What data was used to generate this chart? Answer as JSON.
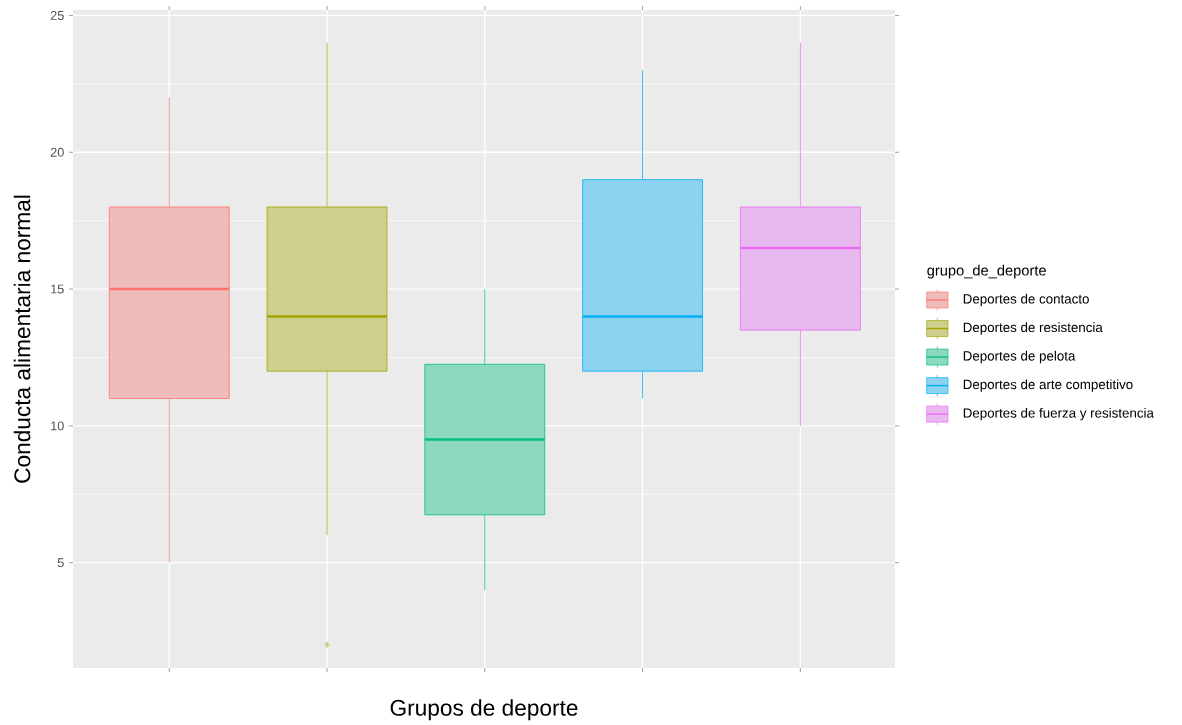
{
  "chart_data": {
    "type": "box",
    "xlabel": "Grupos de deporte",
    "ylabel": "Conducta alimentaria normal",
    "legend_title": "grupo_de_deporte",
    "legend": "right",
    "grid": true,
    "tick_labels": "y",
    "categories": [
      null,
      null,
      null,
      null,
      null
    ],
    "ylim": [
      1.15,
      25.2
    ],
    "yticks": [
      5,
      10,
      15,
      20,
      25
    ],
    "series": [
      {
        "name": "Deportes de contacto",
        "color": "#F8766D",
        "boxes": [
          {
            "low": 5,
            "q1": 11,
            "median": 15,
            "q3": 18,
            "high": 22
          },
          null,
          null,
          null,
          null
        ]
      },
      {
        "name": "Deportes de resistencia",
        "color": "#A3A500",
        "boxes": [
          null,
          {
            "low": 6,
            "q1": 12,
            "median": 14,
            "q3": 18,
            "high": 24,
            "outliers": [
              2
            ]
          },
          null,
          null,
          null
        ]
      },
      {
        "name": "Deportes de pelota",
        "color": "#00BF7D",
        "boxes": [
          null,
          null,
          {
            "low": 4,
            "q1": 6.75,
            "median": 9.5,
            "q3": 12.25,
            "high": 15
          },
          null,
          null
        ]
      },
      {
        "name": "Deportes de arte competitivo",
        "color": "#00B0F6",
        "boxes": [
          null,
          null,
          null,
          {
            "low": 11,
            "q1": 12,
            "median": 14,
            "q3": 19,
            "high": 23
          },
          null
        ]
      },
      {
        "name": "Deportes de fuerza y resistencia",
        "color": "#E76BF3",
        "boxes": [
          null,
          null,
          null,
          null,
          {
            "low": 10,
            "q1": 13.5,
            "median": 16.5,
            "q3": 18,
            "high": 24
          }
        ]
      }
    ]
  }
}
